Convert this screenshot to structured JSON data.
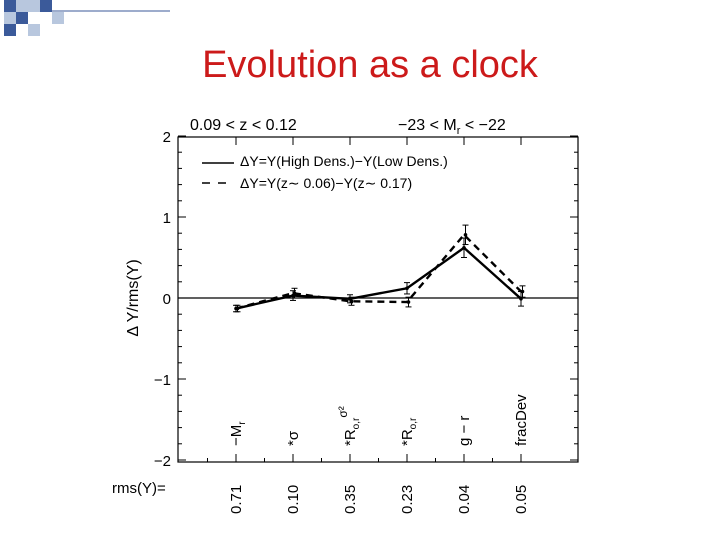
{
  "slide": {
    "title": "Evolution as a clock",
    "title_color": "#cc1a1a",
    "decoration_colors": [
      "#3b5a9a",
      "#b8c7de"
    ]
  },
  "chart_data": {
    "type": "line",
    "panel_labels": {
      "left": "0.09 < z < 0.12",
      "right_prefix": "−23 < M",
      "right_sub": "r",
      "right_suffix": " < −22"
    },
    "ylabel": "Δ Y/rms(Y)",
    "ylim": [
      -2.0,
      2.0
    ],
    "yticks": [
      2,
      1,
      0,
      -1,
      -2
    ],
    "reference_line": 0,
    "x": [
      1,
      2,
      3,
      4,
      5,
      6
    ],
    "categories": [
      {
        "main": "−M",
        "sub": "r",
        "sup": ""
      },
      {
        "main": "*σ",
        "sub": "",
        "sup": ""
      },
      {
        "main": "*R",
        "sub": "o,r",
        "sup": "σ²"
      },
      {
        "main": "*R",
        "sub": "o,r",
        "sup": ""
      },
      {
        "main": "g − r",
        "sub": "",
        "sup": ""
      },
      {
        "main": "fracDev",
        "sub": "",
        "sup": ""
      }
    ],
    "rms_label": "rms(Y)=",
    "rms_values": [
      "0.71",
      "0.10",
      "0.35",
      "0.23",
      "0.04",
      "0.05"
    ],
    "series": [
      {
        "name": "ΔY=Y(High Dens.)−Y(Low Dens.)",
        "legend_symbol": "____",
        "style": "solid",
        "values": [
          -0.13,
          0.03,
          -0.01,
          0.12,
          0.62,
          -0.01
        ],
        "errors": [
          0.04,
          0.06,
          0.05,
          0.07,
          0.12,
          0.09
        ]
      },
      {
        "name": "ΔY=Y(z∼ 0.06)−Y(z∼ 0.17)",
        "legend_symbol": "− −",
        "style": "dashed",
        "values": [
          -0.13,
          0.06,
          -0.04,
          -0.05,
          0.78,
          0.08
        ],
        "errors": [
          0.04,
          0.06,
          0.05,
          0.06,
          0.12,
          0.07
        ]
      }
    ]
  }
}
